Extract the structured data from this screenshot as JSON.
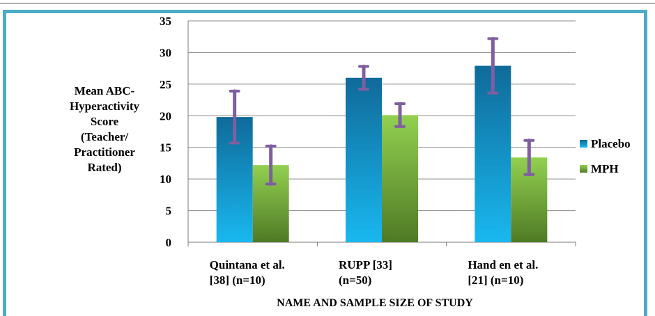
{
  "chart_data": {
    "type": "bar",
    "categories": [
      [
        "Quintana et al.",
        "[38] (n=10)"
      ],
      [
        "RUPP [33]",
        "(n=50)"
      ],
      [
        "Hand en et al.",
        "[21] (n=10)"
      ]
    ],
    "series": [
      {
        "name": "Placebo",
        "values": [
          19.8,
          26.0,
          27.9
        ],
        "errors": [
          4.1,
          1.8,
          4.3
        ]
      },
      {
        "name": "MPH",
        "values": [
          12.2,
          20.1,
          13.4
        ],
        "errors": [
          3.0,
          1.8,
          2.7
        ]
      }
    ],
    "xlabel": "NAME  AND  SAMPLE  SIZE  OF  STUDY",
    "ylabel": [
      "Mean  ABC-",
      "Hyperactivity",
      "Score",
      "(Teacher/",
      "Practitioner",
      "Rated)"
    ],
    "ylim": [
      0,
      35
    ],
    "yticks": [
      0,
      5,
      10,
      15,
      20,
      25,
      30,
      35
    ],
    "grid": true,
    "legend_position": "right",
    "colors": {
      "placebo_top": "#0f6a99",
      "placebo_bottom": "#19b8f0",
      "mph_top": "#92d050",
      "mph_bottom": "#4f7a25",
      "error_bar": "#7f5fa0",
      "frame": "#4bacc6"
    }
  }
}
